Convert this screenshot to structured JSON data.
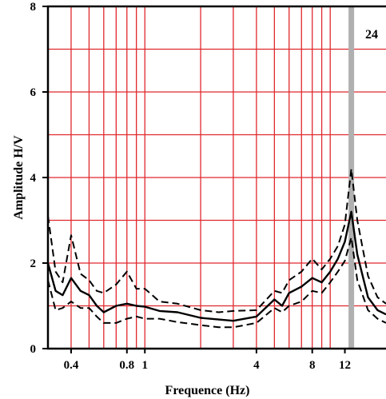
{
  "chart_data": {
    "type": "line",
    "title": "",
    "xlabel": "Frequence (Hz)",
    "ylabel": "Amplitude H/V",
    "x_scale": "log",
    "xlim": [
      0.3,
      20
    ],
    "ylim": [
      0,
      8
    ],
    "grid": true,
    "grid_color": "#e0282d",
    "x_tick_labels": [
      "0.4",
      "0.8",
      "1",
      "4",
      "8",
      "12"
    ],
    "x_ticks": [
      0.4,
      0.8,
      1,
      4,
      8,
      12
    ],
    "y_tick_labels": [
      "0",
      "2",
      "4",
      "6",
      "8"
    ],
    "y_ticks": [
      0,
      2,
      4,
      6,
      8
    ],
    "y_minor_grid": [
      1,
      3,
      5,
      7
    ],
    "x_grid": [
      0.3,
      0.4,
      0.5,
      0.6,
      0.7,
      0.8,
      0.9,
      1,
      2,
      3,
      4,
      5,
      6,
      7,
      8,
      9,
      10,
      20
    ],
    "corner_label": "24",
    "peak_frequency": 13,
    "peak_band_color": "#b0b0b0",
    "x": [
      0.3,
      0.33,
      0.36,
      0.4,
      0.45,
      0.5,
      0.55,
      0.6,
      0.7,
      0.8,
      0.9,
      1.0,
      1.2,
      1.5,
      2.0,
      2.5,
      3.0,
      4.0,
      5.0,
      5.5,
      6.0,
      7.0,
      8.0,
      9.0,
      10.0,
      11.0,
      12.0,
      13.0,
      14.0,
      16.0,
      18.0,
      20.0
    ],
    "series": [
      {
        "style": "solid",
        "values": [
          2.0,
          1.35,
          1.25,
          1.65,
          1.35,
          1.25,
          1.0,
          0.85,
          1.0,
          1.05,
          1.0,
          0.98,
          0.88,
          0.85,
          0.72,
          0.68,
          0.65,
          0.75,
          1.15,
          1.0,
          1.3,
          1.45,
          1.65,
          1.55,
          1.8,
          2.1,
          2.5,
          3.2,
          2.2,
          1.2,
          0.9,
          0.8
        ]
      },
      {
        "style": "dashed",
        "values": [
          3.1,
          1.8,
          1.55,
          2.65,
          1.75,
          1.6,
          1.35,
          1.3,
          1.5,
          1.8,
          1.4,
          1.4,
          1.1,
          1.05,
          0.9,
          0.85,
          0.88,
          0.9,
          1.35,
          1.3,
          1.6,
          1.8,
          2.1,
          1.85,
          2.1,
          2.4,
          2.9,
          4.2,
          3.0,
          1.7,
          1.2,
          1.05
        ]
      },
      {
        "style": "dashed",
        "values": [
          1.6,
          0.9,
          0.95,
          1.1,
          0.95,
          0.95,
          0.75,
          0.6,
          0.6,
          0.7,
          0.75,
          0.7,
          0.7,
          0.62,
          0.55,
          0.5,
          0.5,
          0.6,
          0.95,
          0.85,
          1.0,
          1.1,
          1.35,
          1.3,
          1.55,
          1.8,
          2.05,
          2.6,
          1.6,
          0.9,
          0.7,
          0.6
        ]
      }
    ]
  }
}
